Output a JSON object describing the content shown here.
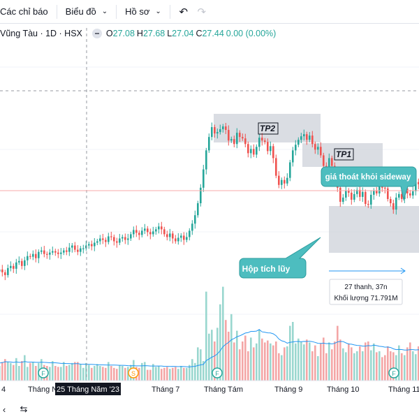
{
  "toolbar": {
    "indicators_label": "Các chỉ báo",
    "chart_type_label": "Biểu đồ",
    "profile_label": "Hồ sơ"
  },
  "legend": {
    "symbol": "Vũng Tàu · 1D · HSX",
    "o_key": "O",
    "o_val": "27.08",
    "h_key": "H",
    "h_val": "27.68",
    "l_key": "L",
    "l_val": "27.04",
    "c_key": "C",
    "c_val": "27.44",
    "change": "0.00 (0.00%)"
  },
  "colors": {
    "up": "#26a69a",
    "down": "#ef5350",
    "vol_up": "#9ad7cf",
    "vol_down": "#f4a6a6",
    "ma": "#2196f3",
    "accent": "#4dbdbf"
  },
  "annotations": {
    "tp2": "TP2",
    "tp1": "TP1",
    "breakout": "giá thoát khỏi sideway",
    "accumulation": "Hộp tích lũy",
    "measure_bars": "27 thanh, 37n",
    "measure_volume": "Khối lượng 71.791M"
  },
  "time_axis": {
    "labels": [
      "4",
      "Tháng Năm",
      "Tháng 7",
      "Tháng Tám",
      "Tháng 9",
      "Tháng 10",
      "Tháng 11"
    ],
    "crosshair_label": "25 Tháng Năm '23"
  },
  "markers": [
    "F",
    "S",
    "F",
    "F"
  ],
  "chart_data": {
    "type": "candlestick",
    "series_close": [
      17.1,
      17.4,
      17.0,
      16.6,
      17.6,
      17.9,
      17.5,
      18.4,
      18.6,
      17.9,
      18.7,
      19.3,
      19.2,
      19.6,
      19.0,
      19.9,
      20.1,
      19.6,
      19.5,
      19.8,
      20.0,
      19.8,
      19.6,
      19.8,
      20.1,
      19.9,
      20.5,
      20.8,
      20.2,
      19.9,
      20.4,
      20.4,
      20.8,
      21.0,
      20.7,
      21.2,
      21.4,
      21.8,
      21.6,
      21.3,
      22.1,
      22.0,
      21.4,
      21.2,
      21.8,
      22.0,
      21.6,
      21.8,
      22.4,
      23.0,
      22.6,
      22.3,
      22.9,
      23.2,
      22.7,
      22.4,
      22.8,
      23.1,
      23.5,
      23.1,
      22.4,
      22.0,
      22.5,
      21.8,
      21.4,
      21.9,
      22.2,
      21.6,
      22.0,
      22.9,
      23.9,
      25.1,
      26.8,
      29.0,
      31.6,
      34.3,
      36.2,
      37.6,
      36.7,
      36.9,
      37.3,
      37.7,
      37.2,
      35.7,
      35.9,
      35.2,
      36.8,
      36.2,
      36.0,
      35.2,
      33.9,
      34.5,
      33.7,
      34.8,
      36.1,
      35.7,
      35.5,
      34.2,
      34.9,
      33.2,
      30.7,
      29.4,
      30.1,
      29.6,
      30.4,
      32.6,
      34.3,
      35.1,
      35.8,
      36.3,
      36.6,
      35.8,
      36.4,
      35.2,
      34.4,
      34.8,
      33.6,
      32.1,
      31.8,
      33.2,
      32.1,
      30.7,
      29.0,
      27.0,
      27.6,
      28.6,
      28.3,
      27.3,
      28.1,
      28.7,
      27.7,
      28.4,
      26.7,
      26.6,
      28.0,
      28.6,
      28.2,
      29.3,
      29.0,
      28.9,
      27.4,
      26.8,
      25.9,
      27.6,
      28.1,
      27.4,
      28.9,
      28.2,
      27.9,
      28.5,
      29.8,
      29.5,
      27.6,
      27.4,
      27.4,
      29.9,
      31.0,
      30.8
    ],
    "volume_millions": [
      2.1,
      1.5,
      1.9,
      2.2,
      1.9,
      1.8,
      1.6,
      2.3,
      1.5,
      2.0,
      2.6,
      1.4,
      1.8,
      1.9,
      1.5,
      1.8,
      2.2,
      1.6,
      1.5,
      1.4,
      2.0,
      1.5,
      1.4,
      1.4,
      1.9,
      1.5,
      1.6,
      1.8,
      1.9,
      1.9,
      1.7,
      1.3,
      1.8,
      1.6,
      1.3,
      1.5,
      1.7,
      1.5,
      1.4,
      1.3,
      1.9,
      1.5,
      1.3,
      1.2,
      1.6,
      1.5,
      1.3,
      1.4,
      1.6,
      2.1,
      1.4,
      1.3,
      1.8,
      1.9,
      1.1,
      1.1,
      1.7,
      1.4,
      1.5,
      1.2,
      1.3,
      1.4,
      1.2,
      1.3,
      1.4,
      1.2,
      1.5,
      1.3,
      1.3,
      1.6,
      2.2,
      1.8,
      3.4,
      3.2,
      2.0,
      9.1,
      4.8,
      5.2,
      4.0,
      5.4,
      7.8,
      9.6,
      6.2,
      5.0,
      6.8,
      3.9,
      5.1,
      3.2,
      4.0,
      4.6,
      3.0,
      4.4,
      3.4,
      3.8,
      5.2,
      4.3,
      3.9,
      4.1,
      3.8,
      3.6,
      4.0,
      2.8,
      2.6,
      3.4,
      3.5,
      5.6,
      6.0,
      3.8,
      4.3,
      4.0,
      3.7,
      4.2,
      3.9,
      3.0,
      3.6,
      2.5,
      3.8,
      4.4,
      2.8,
      3.9,
      3.2,
      4.0,
      5.6,
      4.2,
      3.3,
      2.9,
      3.8,
      3.4,
      2.8,
      3.0,
      3.5,
      3.0,
      3.9,
      4.0,
      3.1,
      3.8,
      2.9,
      3.0,
      2.4,
      2.6,
      3.5,
      3.0,
      2.9,
      2.6,
      3.6,
      2.8,
      2.6,
      3.4,
      3.9,
      3.0,
      2.7,
      3.5,
      3.1,
      3.6,
      4.0,
      4.8,
      3.4,
      3.3
    ]
  }
}
